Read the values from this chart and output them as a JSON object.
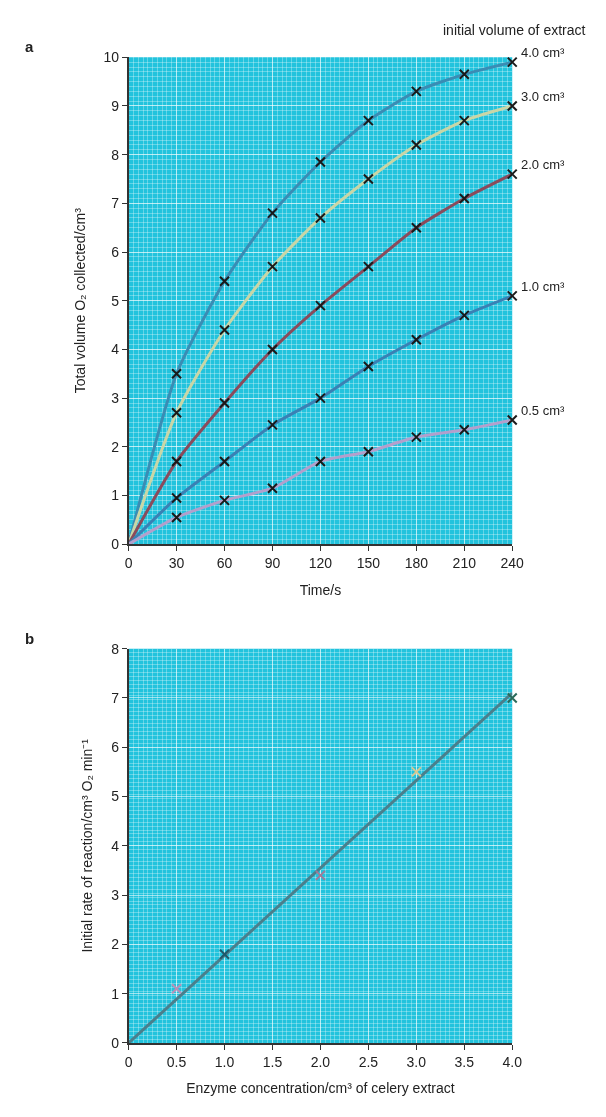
{
  "chart_data": [
    {
      "type": "line",
      "xlabel": "Time/s",
      "ylabel": "Total volume O₂ collected/cm³",
      "annotations": [
        "a",
        "initial volume of extract"
      ],
      "xlim": [
        0,
        240
      ],
      "xticks": [
        0,
        30,
        60,
        90,
        120,
        150,
        180,
        210,
        240
      ],
      "ylim": [
        0,
        10
      ],
      "yticks": [
        0,
        1,
        2,
        3,
        4,
        5,
        6,
        7,
        8,
        9,
        10
      ],
      "grid": true,
      "legend": false,
      "series": [
        {
          "name": "4.0 cm³",
          "color": "#3a8cb4",
          "x": [
            0,
            30,
            60,
            90,
            120,
            150,
            180,
            210,
            240
          ],
          "values": [
            0,
            3.5,
            5.4,
            6.8,
            7.85,
            8.7,
            9.3,
            9.65,
            9.9
          ],
          "marker": "none"
        },
        {
          "name": "3.0 cm³",
          "color": "#c9d6a6",
          "x": [
            0,
            30,
            60,
            90,
            120,
            150,
            180,
            210,
            240
          ],
          "values": [
            0,
            2.7,
            4.4,
            5.7,
            6.7,
            7.5,
            8.2,
            8.7,
            9.0
          ],
          "marker": "none"
        },
        {
          "name": "2.0 cm³",
          "color": "#8a4b5c",
          "x": [
            0,
            30,
            60,
            90,
            120,
            150,
            180,
            210,
            240
          ],
          "values": [
            0,
            1.7,
            2.9,
            4.0,
            4.9,
            5.7,
            6.5,
            7.1,
            7.6
          ],
          "marker": "none"
        },
        {
          "name": "1.0 cm³",
          "color": "#3a80b4",
          "x": [
            0,
            30,
            60,
            90,
            120,
            150,
            180,
            210,
            240
          ],
          "values": [
            0,
            0.95,
            1.7,
            2.45,
            3.0,
            3.65,
            4.2,
            4.7,
            5.1
          ],
          "marker": "none"
        },
        {
          "name": "0.5 cm³",
          "color": "#b39fcc",
          "x": [
            0,
            30,
            60,
            90,
            120,
            150,
            180,
            210,
            240
          ],
          "values": [
            0,
            0.55,
            0.9,
            1.15,
            1.7,
            1.9,
            2.2,
            2.35,
            2.55
          ],
          "marker": "none"
        },
        {
          "type": "scatter",
          "color": "#1a1a1a",
          "marker": "cross",
          "x": [
            30,
            60,
            90,
            120,
            150,
            180,
            210,
            240
          ],
          "values": [
            3.5,
            5.4,
            6.8,
            7.85,
            8.7,
            9.3,
            9.65,
            9.9
          ]
        },
        {
          "type": "scatter",
          "color": "#1a1a1a",
          "marker": "cross",
          "x": [
            30,
            60,
            90,
            120,
            150,
            180,
            210,
            240
          ],
          "values": [
            2.7,
            4.4,
            5.7,
            6.7,
            7.5,
            8.2,
            8.7,
            9.0
          ]
        },
        {
          "type": "scatter",
          "color": "#1a1a1a",
          "marker": "cross",
          "x": [
            30,
            60,
            90,
            120,
            150,
            180,
            210,
            240
          ],
          "values": [
            1.7,
            2.9,
            4.0,
            4.9,
            5.7,
            6.5,
            7.1,
            7.6
          ]
        },
        {
          "type": "scatter",
          "color": "#1a1a1a",
          "marker": "cross",
          "x": [
            30,
            60,
            90,
            120,
            150,
            180,
            210,
            240
          ],
          "values": [
            0.95,
            1.7,
            2.45,
            3.0,
            3.65,
            4.2,
            4.7,
            5.1
          ]
        },
        {
          "type": "scatter",
          "color": "#1a1a1a",
          "marker": "cross",
          "x": [
            30,
            60,
            90,
            120,
            150,
            180,
            210,
            240
          ],
          "values": [
            0.55,
            0.9,
            1.15,
            1.7,
            1.9,
            2.2,
            2.35,
            2.55
          ]
        }
      ]
    },
    {
      "type": "scatter",
      "xlabel": "Enzyme concentration/cm³ of celery extract",
      "ylabel": "Initial rate of reaction/cm³ O₂ min⁻¹",
      "annotations": [
        "b"
      ],
      "xlim": [
        0,
        4
      ],
      "xticks": [
        0,
        {
          "value": 0.5,
          "label": "0.5"
        },
        {
          "value": 1,
          "label": "1.0"
        },
        {
          "value": 1.5,
          "label": "1.5"
        },
        {
          "value": 2,
          "label": "2.0"
        },
        {
          "value": 2.5,
          "label": "2.5"
        },
        {
          "value": 3,
          "label": "3.0"
        },
        {
          "value": 3.5,
          "label": "3.5"
        },
        {
          "value": 4,
          "label": "4.0"
        }
      ],
      "ylim": [
        0,
        8
      ],
      "yticks": [
        0,
        1,
        2,
        3,
        4,
        5,
        6,
        7,
        8
      ],
      "grid": true,
      "legend": false,
      "series": [
        {
          "type": "line",
          "color": "#4a7f8c",
          "x": [
            0,
            4
          ],
          "values": [
            0,
            7.1
          ],
          "marker": "none"
        },
        {
          "type": "scatter",
          "marker": "cross",
          "colors": [
            "#b890b8",
            "#1f5a6a",
            "#a07a98",
            "#d8c890",
            "#2a6a5a"
          ],
          "x": [
            0.5,
            1,
            2,
            3,
            4
          ],
          "values": [
            1.1,
            1.8,
            3.4,
            5.5,
            7.0
          ]
        }
      ]
    }
  ]
}
